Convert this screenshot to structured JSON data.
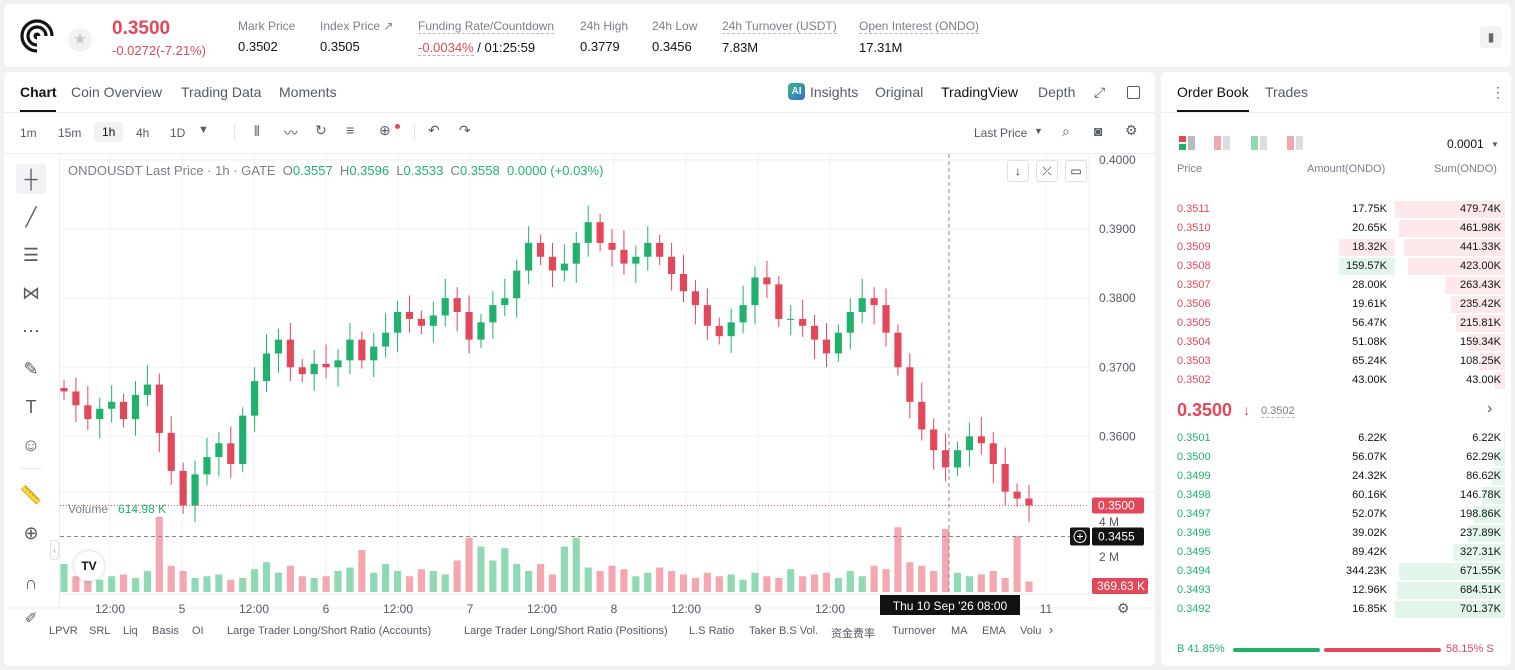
{
  "header": {
    "price": "0.3500",
    "change": "-0.0272(-7.21%)",
    "stats": [
      {
        "label": "Mark Price",
        "value": "0.3502"
      },
      {
        "label": "Index Price ↗",
        "value": "0.3505"
      },
      {
        "label": "Funding Rate/Countdown",
        "value_red": "-0.0034%",
        "value_rest": " / 01:25:59"
      },
      {
        "label": "24h High",
        "value": "0.3779"
      },
      {
        "label": "24h Low",
        "value": "0.3456"
      },
      {
        "label": "24h Turnover (USDT)",
        "value": "7.83M"
      },
      {
        "label": "Open Interest (ONDO)",
        "value": "17.31M"
      }
    ]
  },
  "chart_tabs": [
    "Chart",
    "Coin Overview",
    "Trading Data",
    "Moments"
  ],
  "view_tabs": {
    "insights": "Insights",
    "original": "Original",
    "tradingview": "TradingView",
    "depth": "Depth"
  },
  "timeframes": [
    "1m",
    "15m",
    "1h",
    "4h",
    "1D"
  ],
  "price_source": "Last Price",
  "legend": {
    "symbol": "ONDOUSDT Last Price · 1h · GATE",
    "o_label": "O",
    "o": "0.3557",
    "h_label": "H",
    "h": "0.3596",
    "l_label": "L",
    "l": "0.3533",
    "c_label": "C",
    "c": "0.3558",
    "chg": "0.0000 (+0.03%)"
  },
  "volume_legend": {
    "label": "Volume",
    "value": "614.98 K"
  },
  "price_axis": [
    "0.4000",
    "0.3900",
    "0.3800",
    "0.3700",
    "0.3600"
  ],
  "price_tags": {
    "last": "0.3500",
    "cursor": "0.3455"
  },
  "volume_axis": [
    "4 M",
    "2 M"
  ],
  "volume_tag": "369.63 K",
  "time_axis": [
    "12:00",
    "5",
    "12:00",
    "6",
    "12:00",
    "7",
    "12:00",
    "8",
    "12:00",
    "9",
    "12:00",
    "11"
  ],
  "cursor_time": "Thu 10 Sep '26   08:00",
  "bottom_tools": [
    "LPVR",
    "SRL",
    "Liq",
    "Basis",
    "OI",
    "Large Trader Long/Short Ratio (Accounts)",
    "Large Trader Long/Short Ratio (Positions)",
    "L.S Ratio",
    "Taker B.S Vol.",
    "资金费率",
    "Turnover",
    "MA",
    "EMA",
    "Volu"
  ],
  "chart_data": {
    "type": "candlestick",
    "title": "ONDOUSDT Last Price · 1h · GATE",
    "ylim": [
      0.345,
      0.4
    ],
    "y_ticks": [
      0.4,
      0.39,
      0.38,
      0.37,
      0.36
    ],
    "last_price": 0.35,
    "x_ticks": [
      "12:00",
      "5",
      "12:00",
      "6",
      "12:00",
      "7",
      "12:00",
      "8",
      "12:00",
      "9",
      "12:00",
      "11"
    ],
    "close_series": [
      0.3665,
      0.3645,
      0.3625,
      0.364,
      0.365,
      0.3625,
      0.366,
      0.3675,
      0.3605,
      0.355,
      0.35,
      0.3545,
      0.357,
      0.359,
      0.356,
      0.363,
      0.368,
      0.372,
      0.374,
      0.37,
      0.369,
      0.3705,
      0.37,
      0.371,
      0.374,
      0.371,
      0.373,
      0.375,
      0.378,
      0.377,
      0.376,
      0.3775,
      0.38,
      0.378,
      0.374,
      0.3765,
      0.379,
      0.38,
      0.384,
      0.388,
      0.386,
      0.384,
      0.385,
      0.388,
      0.391,
      0.388,
      0.387,
      0.385,
      0.386,
      0.388,
      0.386,
      0.3835,
      0.381,
      0.379,
      0.376,
      0.3745,
      0.3765,
      0.379,
      0.383,
      0.382,
      0.377,
      0.377,
      0.376,
      0.374,
      0.372,
      0.375,
      0.378,
      0.38,
      0.379,
      0.375,
      0.37,
      0.365,
      0.361,
      0.358,
      0.3555,
      0.358,
      0.36,
      0.359,
      0.356,
      0.352,
      0.351,
      0.35
    ],
    "volume_series": [
      1.6,
      0.9,
      1.1,
      0.7,
      0.9,
      1.0,
      0.8,
      1.2,
      4.3,
      1.5,
      1.2,
      0.8,
      0.9,
      1.0,
      0.7,
      0.8,
      1.3,
      1.7,
      1.1,
      1.5,
      0.9,
      0.8,
      0.9,
      1.2,
      1.4,
      2.4,
      1.1,
      1.6,
      1.2,
      0.9,
      1.3,
      1.2,
      1.0,
      1.8,
      3.1,
      2.6,
      1.8,
      2.5,
      1.6,
      1.2,
      1.6,
      1.0,
      2.6,
      3.1,
      1.4,
      1.2,
      1.5,
      1.3,
      0.9,
      1.1,
      1.4,
      1.2,
      1.0,
      0.8,
      1.1,
      0.9,
      1.0,
      0.7,
      1.1,
      0.9,
      0.8,
      1.3,
      0.9,
      1.0,
      1.1,
      0.8,
      1.2,
      0.9,
      1.5,
      1.3,
      3.7,
      1.7,
      1.5,
      1.2,
      3.6,
      1.1,
      0.9,
      1.0,
      1.2,
      0.8,
      3.2,
      0.6
    ]
  },
  "orderbook": {
    "tabs": [
      "Order Book",
      "Trades"
    ],
    "precision": "0.0001",
    "columns": [
      "Price",
      "Amount(ONDO)",
      "Sum(ONDO)"
    ],
    "asks": [
      {
        "price": "0.3511",
        "amount": "17.75K",
        "sum": "479.74K",
        "depth": 1.0,
        "hl": 0
      },
      {
        "price": "0.3510",
        "amount": "20.65K",
        "sum": "461.98K",
        "depth": 0.96,
        "hl": 0
      },
      {
        "price": "0.3509",
        "amount": "18.32K",
        "sum": "441.33K",
        "depth": 0.92,
        "hl": 0.52
      },
      {
        "price": "0.3508",
        "amount": "159.57K",
        "sum": "423.00K",
        "depth": 0.88,
        "hl": 0.52
      },
      {
        "price": "0.3507",
        "amount": "28.00K",
        "sum": "263.43K",
        "depth": 0.55,
        "hl": 0
      },
      {
        "price": "0.3506",
        "amount": "19.61K",
        "sum": "235.42K",
        "depth": 0.49,
        "hl": 0
      },
      {
        "price": "0.3505",
        "amount": "56.47K",
        "sum": "215.81K",
        "depth": 0.45,
        "hl": 0
      },
      {
        "price": "0.3504",
        "amount": "51.08K",
        "sum": "159.34K",
        "depth": 0.33,
        "hl": 0
      },
      {
        "price": "0.3503",
        "amount": "65.24K",
        "sum": "108.25K",
        "depth": 0.23,
        "hl": 0
      },
      {
        "price": "0.3502",
        "amount": "43.00K",
        "sum": "43.00K",
        "depth": 0.09,
        "hl": 0
      }
    ],
    "mid_price": "0.3500",
    "mid_arrow": "↓",
    "mid_mark": "0.3502",
    "bids": [
      {
        "price": "0.3501",
        "amount": "6.22K",
        "sum": "6.22K",
        "depth": 0.01
      },
      {
        "price": "0.3500",
        "amount": "56.07K",
        "sum": "62.29K",
        "depth": 0.09
      },
      {
        "price": "0.3499",
        "amount": "24.32K",
        "sum": "86.62K",
        "depth": 0.12
      },
      {
        "price": "0.3498",
        "amount": "60.16K",
        "sum": "146.78K",
        "depth": 0.21
      },
      {
        "price": "0.3497",
        "amount": "52.07K",
        "sum": "198.86K",
        "depth": 0.28
      },
      {
        "price": "0.3496",
        "amount": "39.02K",
        "sum": "237.89K",
        "depth": 0.34
      },
      {
        "price": "0.3495",
        "amount": "89.42K",
        "sum": "327.31K",
        "depth": 0.47
      },
      {
        "price": "0.3494",
        "amount": "344.23K",
        "sum": "671.55K",
        "depth": 0.96
      },
      {
        "price": "0.3493",
        "amount": "12.96K",
        "sum": "684.51K",
        "depth": 0.98
      },
      {
        "price": "0.3492",
        "amount": "16.85K",
        "sum": "701.37K",
        "depth": 1.0
      }
    ],
    "ratio_buy": "B 41.85%",
    "ratio_sell": "58.15% S",
    "ratio_buy_fraction": 0.4185
  },
  "colors": {
    "up": "#20b26c",
    "down": "#e2475a",
    "up_light": "#8fd9b4",
    "down_light": "#f4a7b0"
  }
}
